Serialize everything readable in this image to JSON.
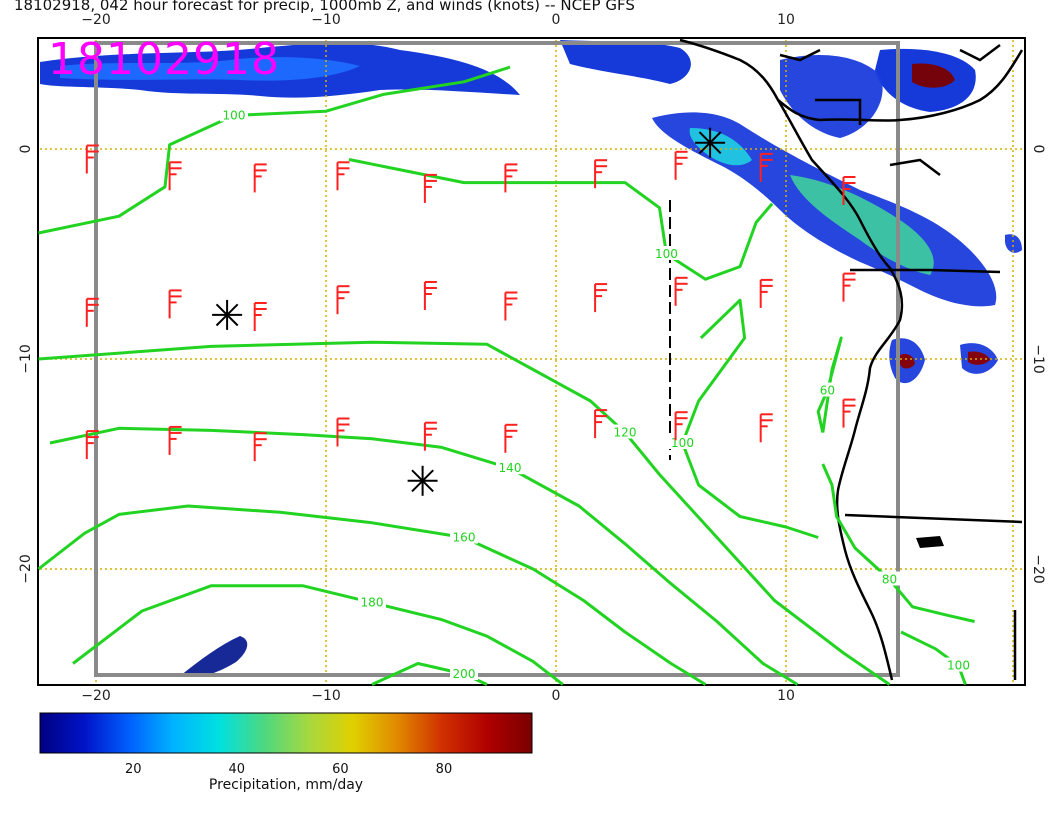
{
  "title": "18102918, 042 hour forecast for precip, 1000mb Z, and winds (knots) -- NCEP GFS",
  "stamp": "18102918",
  "axes": {
    "lon_ticks": [
      {
        "value": -20,
        "label": "−20"
      },
      {
        "value": -10,
        "label": "−10"
      },
      {
        "value": 0,
        "label": "0"
      },
      {
        "value": 10,
        "label": "10"
      }
    ],
    "lat_ticks": [
      {
        "value": 0,
        "label": "0"
      },
      {
        "value": -10,
        "label": "−10"
      },
      {
        "value": -20,
        "label": "−20"
      }
    ],
    "lon_range": [
      -22.5,
      20
    ],
    "lat_range": [
      -25,
      5
    ],
    "grid": true
  },
  "contours": [
    {
      "label": "100",
      "points": [
        [
          -22.5,
          -4
        ],
        [
          -19,
          -3.2
        ],
        [
          -17,
          -1.8
        ],
        [
          -16.8,
          0.2
        ],
        [
          -14,
          1.6
        ],
        [
          -10,
          1.8
        ],
        [
          -7.5,
          2.6
        ],
        [
          -4,
          3.2
        ],
        [
          -2,
          3.9
        ]
      ]
    },
    {
      "label": "100",
      "points": [
        [
          -9,
          -0.5
        ],
        [
          -4,
          -1.6
        ],
        [
          0,
          -1.6
        ],
        [
          3,
          -1.6
        ],
        [
          4.5,
          -2.8
        ],
        [
          4.8,
          -5
        ],
        [
          6.5,
          -6.2
        ],
        [
          8,
          -5.6
        ],
        [
          8.7,
          -3.5
        ],
        [
          9.4,
          -2.6
        ]
      ]
    },
    {
      "label": "100",
      "points": [
        [
          6.3,
          -9
        ],
        [
          8,
          -7.2
        ],
        [
          8.2,
          -9
        ],
        [
          6.2,
          -12
        ],
        [
          5.5,
          -14
        ],
        [
          6.2,
          -16
        ],
        [
          8,
          -17.5
        ],
        [
          10,
          -18
        ],
        [
          11.4,
          -18.5
        ]
      ]
    },
    {
      "label": "120",
      "points": [
        [
          -22.5,
          -10
        ],
        [
          -15,
          -9.4
        ],
        [
          -8,
          -9.2
        ],
        [
          -3,
          -9.3
        ],
        [
          -1,
          -10.5
        ],
        [
          1.5,
          -12
        ],
        [
          3,
          -13.5
        ],
        [
          4.5,
          -15.5
        ],
        [
          7,
          -18.5
        ],
        [
          9.5,
          -21.5
        ],
        [
          12.5,
          -24
        ],
        [
          14.5,
          -25.5
        ]
      ]
    },
    {
      "label": "140",
      "points": [
        [
          -22,
          -14
        ],
        [
          -19,
          -13.3
        ],
        [
          -15,
          -13.4
        ],
        [
          -11,
          -13.6
        ],
        [
          -8,
          -13.8
        ],
        [
          -5,
          -14.2
        ],
        [
          -2,
          -15.2
        ],
        [
          1,
          -17
        ],
        [
          3,
          -18.8
        ],
        [
          5,
          -20.7
        ],
        [
          7,
          -22.5
        ],
        [
          9,
          -24.5
        ],
        [
          10.5,
          -25.5
        ]
      ]
    },
    {
      "label": "160",
      "points": [
        [
          -22.5,
          -20
        ],
        [
          -20.5,
          -18.3
        ],
        [
          -19,
          -17.4
        ],
        [
          -16,
          -17
        ],
        [
          -12,
          -17.3
        ],
        [
          -8,
          -17.8
        ],
        [
          -4,
          -18.5
        ],
        [
          -1,
          -20
        ],
        [
          1.2,
          -21.5
        ],
        [
          3,
          -23
        ],
        [
          5,
          -24.5
        ],
        [
          6.5,
          -25.5
        ]
      ]
    },
    {
      "label": "180",
      "points": [
        [
          -21,
          -24.5
        ],
        [
          -18,
          -22
        ],
        [
          -15,
          -20.8
        ],
        [
          -11,
          -20.8
        ],
        [
          -8,
          -21.6
        ],
        [
          -5,
          -22.4
        ],
        [
          -3,
          -23.2
        ],
        [
          -1,
          -24.4
        ],
        [
          0.3,
          -25.5
        ]
      ]
    },
    {
      "label": "200",
      "points": [
        [
          -8,
          -25.5
        ],
        [
          -6,
          -24.5
        ],
        [
          -4,
          -25
        ],
        [
          -3,
          -25.5
        ]
      ]
    },
    {
      "label": "60",
      "points": [
        [
          11.6,
          -13.5
        ],
        [
          12,
          -10.5
        ],
        [
          12.4,
          -9
        ],
        [
          11.8,
          -11.5
        ],
        [
          11.4,
          -12.5
        ],
        [
          11.6,
          -13.5
        ]
      ]
    },
    {
      "label": "80",
      "points": [
        [
          11.6,
          -15
        ],
        [
          12,
          -16
        ],
        [
          12.2,
          -17.5
        ],
        [
          13,
          -19
        ],
        [
          14.5,
          -20.5
        ],
        [
          15.5,
          -21.8
        ],
        [
          17,
          -22.2
        ],
        [
          18.2,
          -22.5
        ]
      ]
    },
    {
      "label": "100",
      "points": [
        [
          15,
          -23
        ],
        [
          16.5,
          -23.8
        ],
        [
          17.5,
          -24.6
        ],
        [
          17.8,
          -25.5
        ]
      ]
    }
  ],
  "wind_arrows": [
    [
      -20.4,
      -0.5
    ],
    [
      -16.8,
      -1.3
    ],
    [
      -13.1,
      -1.4
    ],
    [
      -9.5,
      -1.3
    ],
    [
      -5.7,
      -1.9
    ],
    [
      -2.2,
      -1.4
    ],
    [
      1.7,
      -1.2
    ],
    [
      5.2,
      -0.8
    ],
    [
      8.9,
      -0.9
    ],
    [
      12.5,
      -2.0
    ],
    [
      -20.4,
      -7.8
    ],
    [
      -16.8,
      -7.4
    ],
    [
      -13.1,
      -8.0
    ],
    [
      -9.5,
      -7.2
    ],
    [
      -5.7,
      -7.0
    ],
    [
      -2.2,
      -7.5
    ],
    [
      1.7,
      -7.1
    ],
    [
      5.2,
      -6.8
    ],
    [
      8.9,
      -6.9
    ],
    [
      12.5,
      -6.6
    ],
    [
      -20.4,
      -14.1
    ],
    [
      -16.8,
      -13.9
    ],
    [
      -13.1,
      -14.2
    ],
    [
      -9.5,
      -13.5
    ],
    [
      -5.7,
      -13.7
    ],
    [
      -2.2,
      -13.8
    ],
    [
      1.7,
      -13.1
    ],
    [
      5.2,
      -13.2
    ],
    [
      8.9,
      -13.3
    ],
    [
      12.5,
      -12.6
    ]
  ],
  "stars": [
    {
      "lon": -14.3,
      "lat": -7.9
    },
    {
      "lon": -5.8,
      "lat": -15.8
    },
    {
      "lon": 6.7,
      "lat": 0.3
    }
  ],
  "colorbar": {
    "ticks": [
      20,
      40,
      60,
      80
    ],
    "range": [
      2,
      97
    ],
    "title": "Precipitation, mm/day",
    "stops": [
      "#000080",
      "#0014c8",
      "#0060ff",
      "#00b4ff",
      "#00e0e0",
      "#4cd880",
      "#a6d840",
      "#e0d000",
      "#e08800",
      "#d03000",
      "#b00000",
      "#7a0000"
    ]
  },
  "colors": {
    "contour": "#22d322",
    "wind": "#ff2020",
    "coast": "#000000",
    "grid": "#d4b000",
    "frame": "#888888",
    "stamp": "#ff00ff"
  }
}
